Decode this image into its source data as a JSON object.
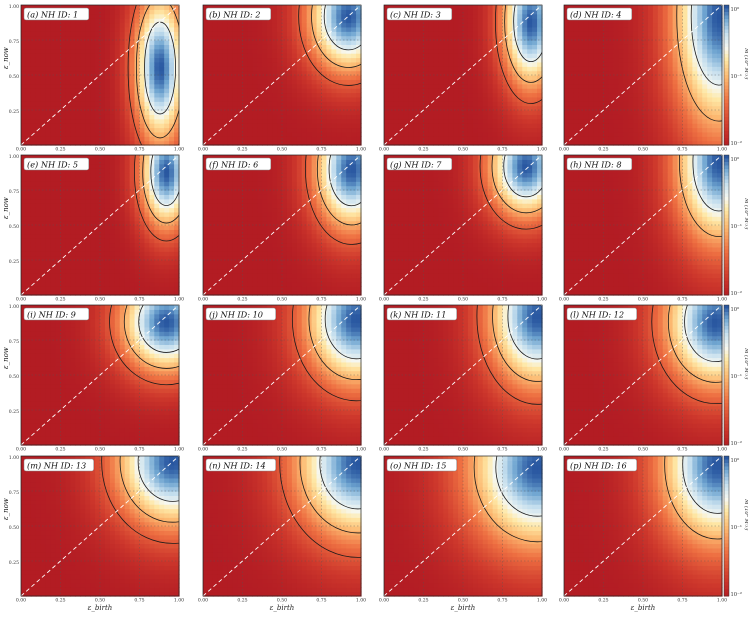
{
  "chart_data": {
    "type": "heatmap",
    "layout": "4x4 grid of panels",
    "xlabel": "ε_birth",
    "ylabel": "ε_now",
    "xlim": [
      0,
      1
    ],
    "ylim": [
      0,
      1
    ],
    "x_ticks": [
      "0.00",
      "0.25",
      "0.50",
      "0.75",
      "1.00"
    ],
    "y_ticks": [
      "0.25",
      "0.50",
      "0.75",
      "1.00"
    ],
    "grid": true,
    "diagonal_reference": "y = x, white dashed",
    "colorbar": {
      "label": "M (10⁸ M☉)",
      "scale": "log",
      "range": [
        0.01,
        1
      ],
      "ticks": [
        "10⁰",
        "10⁻¹",
        "10⁻²"
      ],
      "colormap": "red-yellow-blue"
    },
    "panels": [
      {
        "label": "(a) NH ID: 1",
        "peak": [
          0.88,
          0.55
        ],
        "spread": [
          0.09,
          0.3
        ],
        "contours": 3
      },
      {
        "label": "(b) NH ID: 2",
        "peak": [
          0.92,
          0.92
        ],
        "spread": [
          0.14,
          0.22
        ],
        "contours": 3
      },
      {
        "label": "(c) NH ID: 3",
        "peak": [
          0.93,
          0.88
        ],
        "spread": [
          0.1,
          0.26
        ],
        "contours": 3
      },
      {
        "label": "(d) NH ID: 4",
        "peak": [
          0.98,
          0.92
        ],
        "spread": [
          0.16,
          0.45
        ],
        "contours": 2
      },
      {
        "label": "(e) NH ID: 5",
        "peak": [
          0.92,
          0.88
        ],
        "spread": [
          0.09,
          0.22
        ],
        "contours": 3
      },
      {
        "label": "(f) NH ID: 6",
        "peak": [
          0.94,
          0.9
        ],
        "spread": [
          0.13,
          0.24
        ],
        "contours": 3
      },
      {
        "label": "(g) NH ID: 7",
        "peak": [
          0.9,
          0.92
        ],
        "spread": [
          0.13,
          0.2
        ],
        "contours": 3
      },
      {
        "label": "(h) NH ID: 8",
        "peak": [
          0.98,
          0.95
        ],
        "spread": [
          0.15,
          0.32
        ],
        "contours": 2
      },
      {
        "label": "(i) NH ID: 9",
        "peak": [
          0.92,
          0.88
        ],
        "spread": [
          0.16,
          0.2
        ],
        "contours": 3
      },
      {
        "label": "(j) NH ID: 10",
        "peak": [
          0.97,
          0.9
        ],
        "spread": [
          0.18,
          0.26
        ],
        "contours": 3
      },
      {
        "label": "(k) NH ID: 11",
        "peak": [
          0.97,
          0.92
        ],
        "spread": [
          0.17,
          0.28
        ],
        "contours": 3
      },
      {
        "label": "(l) NH ID: 12",
        "peak": [
          0.96,
          0.88
        ],
        "spread": [
          0.18,
          0.26
        ],
        "contours": 3
      },
      {
        "label": "(m) NH ID: 13",
        "peak": [
          0.96,
          0.96
        ],
        "spread": [
          0.2,
          0.26
        ],
        "contours": 3
      },
      {
        "label": "(n) NH ID: 14",
        "peak": [
          0.98,
          0.95
        ],
        "spread": [
          0.22,
          0.3
        ],
        "contours": 3
      },
      {
        "label": "(o) NH ID: 15",
        "peak": [
          0.97,
          0.92
        ],
        "spread": [
          0.24,
          0.32
        ],
        "contours": 2
      },
      {
        "label": "(p) NH ID: 16",
        "peak": [
          0.97,
          0.94
        ],
        "spread": [
          0.2,
          0.32
        ],
        "contours": 2
      }
    ]
  }
}
